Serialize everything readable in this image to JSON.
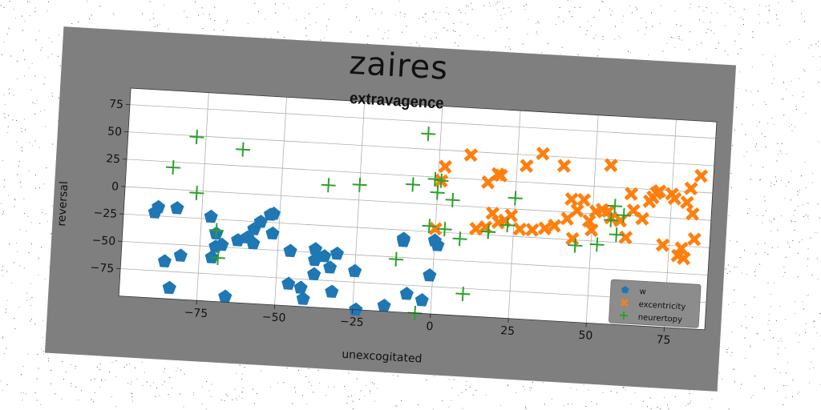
{
  "figure": {
    "suptitle": "zaires",
    "background": "#7f7f7f"
  },
  "chart_data": {
    "type": "scatter",
    "title": "extravagence",
    "xlabel": "unexcogitated",
    "ylabel": "reversal",
    "xlim": [
      -100,
      88
    ],
    "ylim": [
      -100,
      90
    ],
    "xticks": [
      -75,
      -50,
      -25,
      0,
      25,
      50,
      75
    ],
    "yticks": [
      -75,
      -50,
      -25,
      0,
      25,
      50,
      75
    ],
    "grid": true,
    "legend_position": "lower-right",
    "series": [
      {
        "name": "w",
        "color": "#1f77b4",
        "marker": "pentagon",
        "points": [
          [
            -90,
            -22
          ],
          [
            -89,
            -17
          ],
          [
            -83,
            -17
          ],
          [
            -86,
            -66
          ],
          [
            -81,
            -60
          ],
          [
            -84,
            -90
          ],
          [
            -72,
            -23
          ],
          [
            -70,
            -38
          ],
          [
            -70,
            -50
          ],
          [
            -71,
            -60
          ],
          [
            -68,
            -48
          ],
          [
            -66,
            -95
          ],
          [
            -63,
            -43
          ],
          [
            -60,
            -40
          ],
          [
            -58,
            -45
          ],
          [
            -58,
            -32
          ],
          [
            -56,
            -25
          ],
          [
            -53,
            -18
          ],
          [
            -52,
            -17
          ],
          [
            -52,
            -35
          ],
          [
            -46,
            -50
          ],
          [
            -46,
            -80
          ],
          [
            -42,
            -83
          ],
          [
            -41,
            -93
          ],
          [
            -38,
            -57
          ],
          [
            -38,
            -70
          ],
          [
            -38,
            -47
          ],
          [
            -35,
            -53
          ],
          [
            -33,
            -63
          ],
          [
            -32,
            -85
          ],
          [
            -31,
            -50
          ],
          [
            -25,
            -65
          ],
          [
            -24,
            -100
          ],
          [
            -15,
            -95
          ],
          [
            -10,
            -35
          ],
          [
            -8,
            -83
          ],
          [
            -3,
            -105
          ],
          [
            -1,
            -65
          ],
          [
            1,
            -37
          ],
          [
            0,
            -33
          ],
          [
            -3,
            -88
          ],
          [
            -1,
            -110
          ],
          [
            -10,
            -33
          ]
        ]
      },
      {
        "name": "excentricity",
        "color": "#ff7f0e",
        "marker": "x",
        "points": [
          [
            0,
            -22
          ],
          [
            1,
            22
          ],
          [
            2,
            35
          ],
          [
            10,
            47
          ],
          [
            13,
            -20
          ],
          [
            16,
            23
          ],
          [
            19,
            31
          ],
          [
            20,
            30
          ],
          [
            18,
            -5
          ],
          [
            16,
            -18
          ],
          [
            20,
            -13
          ],
          [
            22,
            -11
          ],
          [
            24,
            -6
          ],
          [
            27,
            -18
          ],
          [
            28,
            40
          ],
          [
            31,
            -18
          ],
          [
            33,
            52
          ],
          [
            35,
            -16
          ],
          [
            38,
            -13
          ],
          [
            40,
            42
          ],
          [
            42,
            -6
          ],
          [
            43,
            12
          ],
          [
            44,
            -24
          ],
          [
            45,
            2
          ],
          [
            47,
            12
          ],
          [
            49,
            -7
          ],
          [
            50,
            -15
          ],
          [
            51,
            2
          ],
          [
            53,
            4
          ],
          [
            55,
            3
          ],
          [
            56,
            -3
          ],
          [
            55,
            45
          ],
          [
            59,
            -5
          ],
          [
            61,
            -20
          ],
          [
            62,
            20
          ],
          [
            63,
            5
          ],
          [
            66,
            -2
          ],
          [
            68,
            14
          ],
          [
            69,
            18
          ],
          [
            70,
            22
          ],
          [
            71,
            24
          ],
          [
            73,
            -25
          ],
          [
            75,
            22
          ],
          [
            76,
            18
          ],
          [
            78,
            -34
          ],
          [
            79,
            -27
          ],
          [
            80,
            -36
          ],
          [
            81,
            28
          ],
          [
            82,
            5
          ],
          [
            83,
            -18
          ],
          [
            84,
            40
          ],
          [
            80,
            15
          ]
        ]
      },
      {
        "name": "neurertopy",
        "color": "#2ca02c",
        "marker": "plus",
        "points": [
          [
            -85,
            20
          ],
          [
            -78,
            49
          ],
          [
            -77,
            -2
          ],
          [
            -70,
            -35
          ],
          [
            -69,
            -60
          ],
          [
            -63,
            40
          ],
          [
            -35,
            12
          ],
          [
            -25,
            14
          ],
          [
            -12,
            -52
          ],
          [
            -8,
            17
          ],
          [
            -5,
            -100
          ],
          [
            -4,
            64
          ],
          [
            -1,
            23
          ],
          [
            -2,
            -20
          ],
          [
            0,
            11
          ],
          [
            1,
            22
          ],
          [
            3,
            -22
          ],
          [
            5,
            5
          ],
          [
            8,
            -30
          ],
          [
            10,
            -80
          ],
          [
            17,
            -22
          ],
          [
            17,
            -22
          ],
          [
            23,
            -15
          ],
          [
            25,
            10
          ],
          [
            45,
            -30
          ],
          [
            52,
            -28
          ],
          [
            56,
            -5
          ],
          [
            58,
            -18
          ],
          [
            57,
            8
          ],
          [
            60,
            0
          ]
        ]
      }
    ]
  }
}
